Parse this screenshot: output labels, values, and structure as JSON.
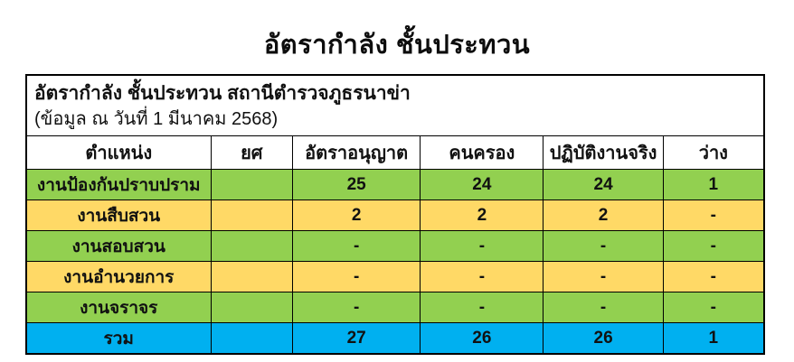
{
  "page_title": "อัตรากำลัง ชั้นประทวน",
  "table": {
    "caption_line1": "อัตรากำลัง ชั้นประทวน สถานีตำรวจภูธรนาข่า",
    "caption_line2": "(ข้อมูล ณ วันที่ 1 มีนาคม 2568)",
    "columns": [
      "ตำแหน่ง",
      "ยศ",
      "อัตราอนุญาต",
      "คนครอง",
      "ปฏิบัติงานจริง",
      "ว่าง"
    ],
    "rows": [
      {
        "color": "green",
        "cells": [
          "งานป้องกันปราบปราม",
          "",
          "25",
          "24",
          "24",
          "1"
        ]
      },
      {
        "color": "yellow",
        "cells": [
          "งานสืบสวน",
          "",
          "2",
          "2",
          "2",
          "-"
        ]
      },
      {
        "color": "green",
        "cells": [
          "งานสอบสวน",
          "",
          "-",
          "-",
          "-",
          "-"
        ]
      },
      {
        "color": "yellow",
        "cells": [
          "งานอำนวยการ",
          "",
          "-",
          "-",
          "-",
          "-"
        ]
      },
      {
        "color": "green",
        "cells": [
          "งานจราจร",
          "",
          "-",
          "-",
          "-",
          "-"
        ]
      }
    ],
    "total_row": {
      "color": "blue",
      "cells": [
        "รวม",
        "",
        "27",
        "26",
        "26",
        "1"
      ]
    }
  },
  "colors": {
    "green": "#92D050",
    "yellow": "#FFD966",
    "blue": "#00B0F0",
    "border": "#000000",
    "text": "#111111"
  }
}
